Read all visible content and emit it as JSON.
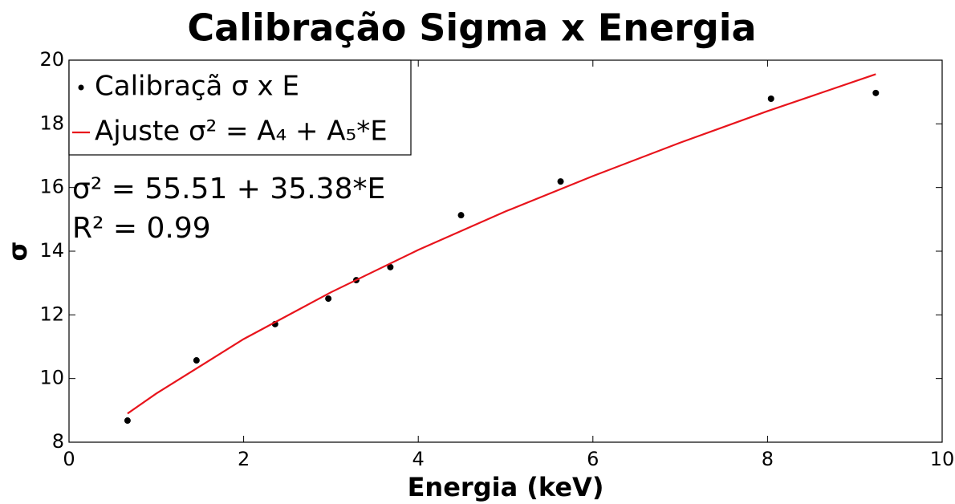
{
  "chart_data": {
    "type": "scatter",
    "title": "Calibração Sigma x Energia",
    "xlabel": "Energia (keV)",
    "ylabel": "σ",
    "annotations": [
      "σ² = 55.51 + 35.38*E",
      "R² = 0.99"
    ],
    "series": [
      {
        "name": "Calibraçã σ x E",
        "color": "#000000",
        "mode": "markers",
        "x": [
          0.67,
          1.46,
          2.36,
          2.97,
          3.29,
          3.68,
          4.49,
          5.63,
          8.04,
          9.24
        ],
        "values": [
          8.68,
          10.57,
          11.71,
          12.51,
          13.09,
          13.5,
          15.13,
          16.19,
          18.79,
          18.97
        ]
      },
      {
        "name": "Ajuste σ² = A₄ + A₅*E",
        "color": "#e8141c",
        "mode": "line",
        "x": [
          0.67,
          1,
          2,
          3,
          4,
          5,
          6,
          7,
          8,
          9.24
        ],
        "values": [
          8.9,
          9.53,
          11.24,
          12.71,
          14.04,
          15.25,
          16.36,
          17.41,
          18.4,
          19.56
        ]
      }
    ],
    "xlim": [
      0,
      10
    ],
    "xticks": [
      0,
      2,
      4,
      6,
      8,
      10
    ],
    "ylim": [
      8,
      20
    ],
    "yticks": [
      8,
      10,
      12,
      14,
      16,
      18,
      20
    ],
    "legend": "upper left"
  }
}
